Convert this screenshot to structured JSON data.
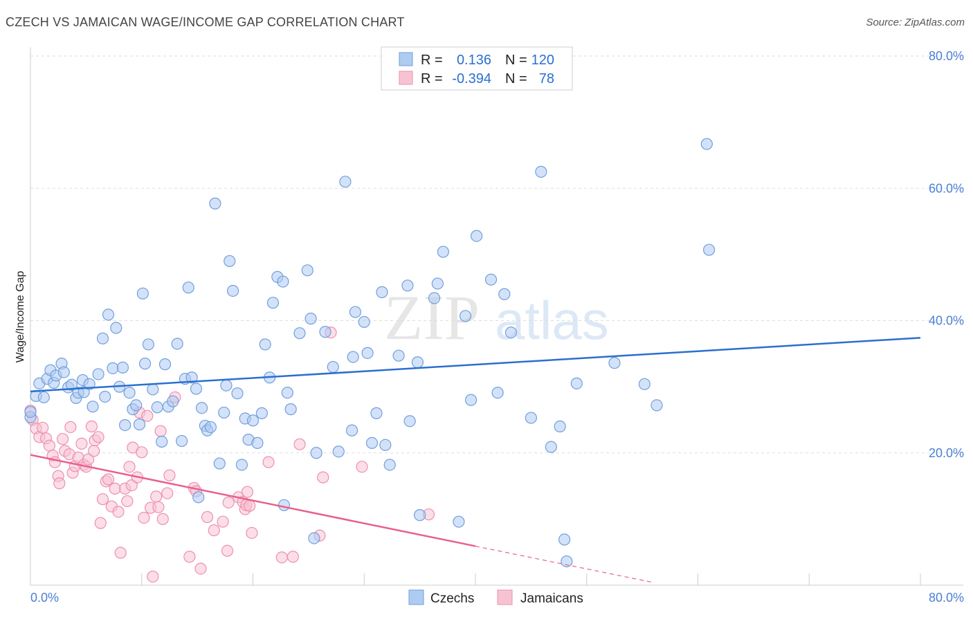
{
  "title": "CZECH VS JAMAICAN WAGE/INCOME GAP CORRELATION CHART",
  "source": "Source: ZipAtlas.com",
  "watermark": {
    "zip": "ZIP",
    "atlas": "atlas"
  },
  "colors": {
    "czech_fill": "#aecbf2",
    "czech_stroke": "#6f9fde",
    "czech_line": "#2a6fd0",
    "jamaican_fill": "#f7c3d3",
    "jamaican_stroke": "#ee8fae",
    "jamaican_line": "#e8608c",
    "value_text": "#2a6fd0",
    "grid": "#dddddd"
  },
  "legend": {
    "rows": [
      {
        "r_label": "R =",
        "r_value": "0.136",
        "n_label": "N =",
        "n_value": "120"
      },
      {
        "r_label": "R =",
        "r_value": "-0.394",
        "n_label": "N =",
        "n_value": "78"
      }
    ]
  },
  "chart_data": {
    "type": "scatter",
    "title": "CZECH VS JAMAICAN WAGE/INCOME GAP CORRELATION CHART",
    "xlabel": "",
    "ylabel": "Wage/Income Gap",
    "xlim": [
      0,
      80
    ],
    "ylim": [
      0,
      80
    ],
    "x_tick_labels": [
      "0.0%",
      "80.0%"
    ],
    "y_tick_labels": [
      "20.0%",
      "40.0%",
      "60.0%",
      "80.0%"
    ],
    "y_ticks": [
      20,
      40,
      60,
      80
    ],
    "grid": true,
    "legend_position": "top-center",
    "series": [
      {
        "name": "Czechs",
        "color": "#aecbf2",
        "trend": {
          "x": [
            0,
            80
          ],
          "y": [
            29.3,
            37.4
          ]
        },
        "points": [
          [
            0.0,
            25.4
          ],
          [
            0.0,
            26.2
          ],
          [
            0.5,
            28.6
          ],
          [
            0.8,
            30.5
          ],
          [
            1.2,
            28.4
          ],
          [
            1.5,
            31.2
          ],
          [
            1.8,
            32.5
          ],
          [
            2.1,
            30.6
          ],
          [
            2.3,
            31.7
          ],
          [
            2.8,
            33.5
          ],
          [
            3.0,
            32.2
          ],
          [
            3.4,
            29.9
          ],
          [
            3.7,
            30.3
          ],
          [
            4.1,
            28.3
          ],
          [
            4.3,
            29.1
          ],
          [
            4.7,
            31.0
          ],
          [
            4.8,
            29.2
          ],
          [
            5.3,
            30.4
          ],
          [
            5.6,
            27.0
          ],
          [
            6.1,
            31.9
          ],
          [
            6.5,
            37.3
          ],
          [
            6.7,
            28.5
          ],
          [
            7.0,
            40.9
          ],
          [
            7.4,
            32.8
          ],
          [
            7.7,
            38.9
          ],
          [
            8.0,
            30.0
          ],
          [
            8.3,
            32.9
          ],
          [
            8.5,
            24.2
          ],
          [
            8.9,
            29.1
          ],
          [
            9.2,
            26.6
          ],
          [
            9.5,
            27.2
          ],
          [
            9.8,
            24.3
          ],
          [
            10.1,
            44.1
          ],
          [
            10.3,
            33.5
          ],
          [
            10.6,
            36.4
          ],
          [
            11.0,
            29.6
          ],
          [
            11.4,
            26.9
          ],
          [
            11.8,
            21.7
          ],
          [
            12.1,
            33.4
          ],
          [
            12.4,
            27.0
          ],
          [
            12.8,
            27.8
          ],
          [
            13.2,
            36.5
          ],
          [
            13.6,
            21.8
          ],
          [
            13.9,
            31.2
          ],
          [
            14.2,
            45.0
          ],
          [
            14.5,
            31.4
          ],
          [
            14.9,
            29.7
          ],
          [
            15.1,
            13.3
          ],
          [
            15.4,
            26.8
          ],
          [
            15.7,
            24.1
          ],
          [
            15.9,
            23.4
          ],
          [
            16.2,
            23.9
          ],
          [
            16.6,
            57.7
          ],
          [
            17.0,
            18.4
          ],
          [
            17.4,
            26.1
          ],
          [
            17.6,
            30.2
          ],
          [
            17.9,
            49.0
          ],
          [
            18.2,
            44.5
          ],
          [
            18.6,
            29.0
          ],
          [
            19.0,
            18.2
          ],
          [
            19.3,
            25.2
          ],
          [
            19.6,
            22.0
          ],
          [
            20.0,
            24.9
          ],
          [
            20.4,
            21.5
          ],
          [
            20.8,
            26.0
          ],
          [
            21.1,
            36.4
          ],
          [
            21.5,
            31.4
          ],
          [
            21.8,
            42.7
          ],
          [
            22.2,
            46.6
          ],
          [
            22.7,
            45.9
          ],
          [
            22.8,
            12.1
          ],
          [
            23.1,
            29.1
          ],
          [
            23.4,
            26.6
          ],
          [
            24.2,
            38.1
          ],
          [
            24.9,
            47.6
          ],
          [
            25.2,
            40.3
          ],
          [
            25.5,
            7.1
          ],
          [
            25.7,
            20.0
          ],
          [
            26.5,
            38.3
          ],
          [
            27.2,
            33.0
          ],
          [
            27.7,
            20.2
          ],
          [
            28.3,
            61.0
          ],
          [
            28.9,
            23.4
          ],
          [
            29.0,
            34.5
          ],
          [
            29.2,
            41.3
          ],
          [
            30.0,
            39.8
          ],
          [
            30.3,
            35.1
          ],
          [
            30.7,
            21.5
          ],
          [
            31.1,
            26.0
          ],
          [
            31.6,
            44.3
          ],
          [
            31.9,
            21.2
          ],
          [
            32.3,
            18.2
          ],
          [
            33.1,
            34.7
          ],
          [
            33.9,
            45.3
          ],
          [
            34.1,
            24.8
          ],
          [
            34.8,
            33.7
          ],
          [
            35.0,
            10.6
          ],
          [
            36.3,
            43.4
          ],
          [
            36.6,
            45.6
          ],
          [
            37.1,
            50.4
          ],
          [
            38.5,
            9.6
          ],
          [
            39.1,
            40.7
          ],
          [
            39.6,
            28.0
          ],
          [
            40.1,
            52.8
          ],
          [
            41.4,
            46.2
          ],
          [
            42.0,
            29.1
          ],
          [
            42.6,
            44.0
          ],
          [
            43.2,
            38.2
          ],
          [
            45.0,
            25.3
          ],
          [
            45.9,
            62.5
          ],
          [
            46.8,
            20.9
          ],
          [
            47.6,
            24.0
          ],
          [
            48.0,
            6.9
          ],
          [
            48.2,
            3.6
          ],
          [
            49.1,
            30.5
          ],
          [
            52.5,
            33.6
          ],
          [
            55.2,
            30.4
          ],
          [
            56.3,
            27.2
          ],
          [
            60.8,
            66.7
          ],
          [
            61.0,
            50.7
          ]
        ]
      },
      {
        "name": "Jamaicans",
        "color": "#f7c3d3",
        "trend": {
          "x": [
            0,
            40
          ],
          "y": [
            19.7,
            5.9
          ]
        },
        "trend_dashed": {
          "x": [
            40,
            56
          ],
          "y": [
            5.9,
            0.4
          ]
        },
        "points": [
          [
            0.0,
            26.4
          ],
          [
            0.2,
            25.0
          ],
          [
            0.5,
            23.7
          ],
          [
            0.8,
            22.4
          ],
          [
            1.1,
            23.8
          ],
          [
            1.4,
            22.2
          ],
          [
            1.7,
            21.1
          ],
          [
            2.0,
            19.6
          ],
          [
            2.2,
            18.6
          ],
          [
            2.5,
            16.5
          ],
          [
            2.6,
            15.4
          ],
          [
            2.9,
            22.1
          ],
          [
            3.1,
            20.3
          ],
          [
            3.5,
            19.8
          ],
          [
            3.6,
            23.9
          ],
          [
            3.8,
            17.0
          ],
          [
            4.0,
            18.0
          ],
          [
            4.3,
            19.3
          ],
          [
            4.6,
            21.4
          ],
          [
            4.8,
            18.2
          ],
          [
            5.0,
            17.9
          ],
          [
            5.2,
            19.0
          ],
          [
            5.5,
            24.0
          ],
          [
            5.7,
            20.3
          ],
          [
            5.8,
            21.9
          ],
          [
            6.1,
            22.4
          ],
          [
            6.3,
            9.4
          ],
          [
            6.5,
            13.0
          ],
          [
            6.8,
            15.7
          ],
          [
            7.0,
            16.0
          ],
          [
            7.3,
            11.9
          ],
          [
            7.6,
            14.6
          ],
          [
            7.9,
            11.1
          ],
          [
            8.1,
            4.9
          ],
          [
            8.5,
            14.6
          ],
          [
            8.7,
            12.7
          ],
          [
            8.9,
            17.9
          ],
          [
            9.1,
            15.1
          ],
          [
            9.2,
            20.8
          ],
          [
            9.6,
            16.3
          ],
          [
            9.8,
            26.1
          ],
          [
            10.0,
            20.1
          ],
          [
            10.2,
            10.2
          ],
          [
            10.5,
            25.6
          ],
          [
            10.8,
            11.7
          ],
          [
            11.0,
            1.3
          ],
          [
            11.3,
            13.4
          ],
          [
            11.5,
            11.8
          ],
          [
            11.7,
            23.3
          ],
          [
            11.9,
            10.0
          ],
          [
            12.3,
            13.9
          ],
          [
            12.5,
            16.6
          ],
          [
            13.0,
            28.4
          ],
          [
            14.3,
            4.3
          ],
          [
            14.7,
            14.7
          ],
          [
            14.9,
            14.2
          ],
          [
            15.3,
            2.5
          ],
          [
            15.9,
            10.3
          ],
          [
            16.5,
            8.3
          ],
          [
            17.3,
            9.6
          ],
          [
            17.7,
            5.2
          ],
          [
            17.8,
            12.5
          ],
          [
            18.7,
            13.3
          ],
          [
            19.1,
            12.6
          ],
          [
            19.3,
            11.5
          ],
          [
            19.4,
            12.1
          ],
          [
            19.5,
            14.1
          ],
          [
            19.7,
            12.0
          ],
          [
            19.9,
            7.9
          ],
          [
            21.4,
            18.6
          ],
          [
            22.6,
            4.2
          ],
          [
            23.6,
            4.3
          ],
          [
            24.2,
            21.3
          ],
          [
            26.0,
            7.5
          ],
          [
            26.3,
            16.3
          ],
          [
            27.0,
            38.2
          ],
          [
            29.8,
            17.9
          ],
          [
            35.8,
            10.7
          ]
        ]
      }
    ]
  },
  "bottom_legend": {
    "items": [
      {
        "label": "Czechs"
      },
      {
        "label": "Jamaicans"
      }
    ]
  }
}
